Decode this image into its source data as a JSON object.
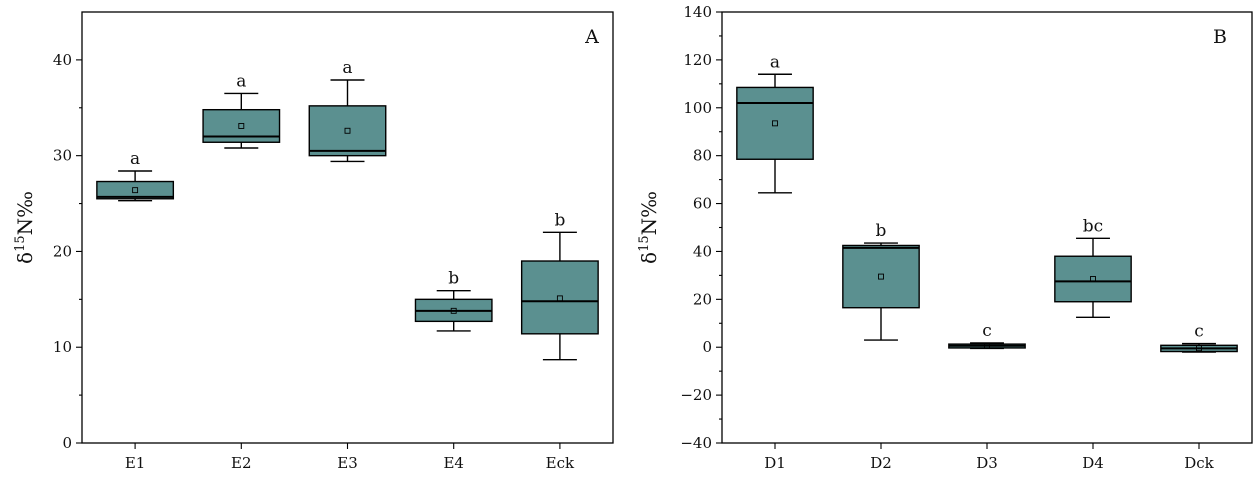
{
  "chart_data": [
    {
      "type": "box",
      "panel_label": "A",
      "ylabel_prefix": "δ",
      "ylabel_sup": "15",
      "ylabel_suffix": "N‰",
      "ylim": [
        0,
        45
      ],
      "yticks": [
        0,
        10,
        20,
        30,
        40
      ],
      "box_color": "#5b9090",
      "categories": [
        "E1",
        "E2",
        "E3",
        "E4",
        "Eck"
      ],
      "boxes": [
        {
          "category": "E1",
          "min": 25.3,
          "q1": 25.5,
          "median": 25.7,
          "q3": 27.3,
          "max": 28.4,
          "mean": 26.4,
          "letter": "a"
        },
        {
          "category": "E2",
          "min": 30.8,
          "q1": 31.4,
          "median": 32.0,
          "q3": 34.8,
          "max": 36.5,
          "mean": 33.1,
          "letter": "a"
        },
        {
          "category": "E3",
          "min": 29.4,
          "q1": 30.0,
          "median": 30.5,
          "q3": 35.2,
          "max": 37.9,
          "mean": 32.6,
          "letter": "a"
        },
        {
          "category": "E4",
          "min": 11.7,
          "q1": 12.7,
          "median": 13.8,
          "q3": 15.0,
          "max": 15.9,
          "mean": 13.8,
          "letter": "b"
        },
        {
          "category": "Eck",
          "min": 8.7,
          "q1": 11.4,
          "median": 14.8,
          "q3": 19.0,
          "max": 22.0,
          "mean": 15.1,
          "letter": "b"
        }
      ]
    },
    {
      "type": "box",
      "panel_label": "B",
      "ylabel_prefix": "δ",
      "ylabel_sup": "15",
      "ylabel_suffix": "N‰",
      "ylim": [
        -40,
        140
      ],
      "yticks": [
        -40,
        -20,
        0,
        20,
        40,
        60,
        80,
        100,
        120,
        140
      ],
      "box_color": "#5b9090",
      "categories": [
        "D1",
        "D2",
        "D3",
        "D4",
        "Dck"
      ],
      "boxes": [
        {
          "category": "D1",
          "min": 64.5,
          "q1": 78.5,
          "median": 102.0,
          "q3": 108.5,
          "max": 114.0,
          "mean": 93.5,
          "letter": "a"
        },
        {
          "category": "D2",
          "min": 3.0,
          "q1": 16.5,
          "median": 41.5,
          "q3": 42.5,
          "max": 43.5,
          "mean": 29.5,
          "letter": "b"
        },
        {
          "category": "D3",
          "min": -0.5,
          "q1": -0.3,
          "median": 0.6,
          "q3": 1.3,
          "max": 1.8,
          "mean": 0.5,
          "letter": "c"
        },
        {
          "category": "D4",
          "min": 12.5,
          "q1": 19.0,
          "median": 27.5,
          "q3": 38.0,
          "max": 45.5,
          "mean": 28.5,
          "letter": "bc"
        },
        {
          "category": "Dck",
          "min": -2.0,
          "q1": -1.8,
          "median": -0.5,
          "q3": 0.8,
          "max": 1.5,
          "mean": -0.4,
          "letter": "c"
        }
      ]
    }
  ]
}
